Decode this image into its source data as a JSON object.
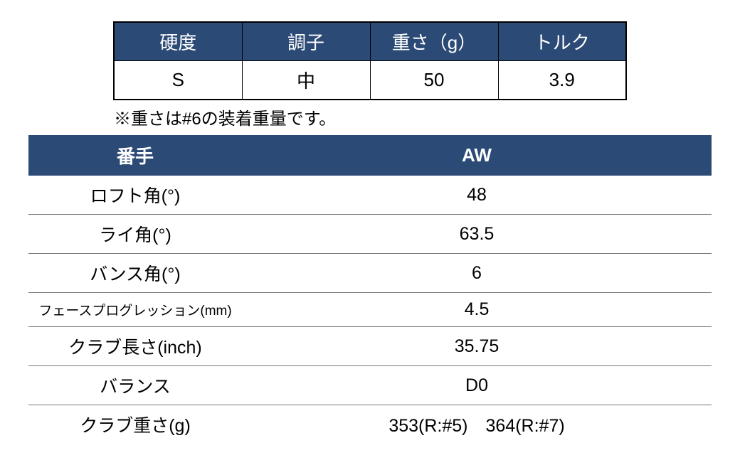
{
  "table1": {
    "header_bg": "#2c4a76",
    "header_color": "#ffffff",
    "border_color": "#000000",
    "columns": [
      "硬度",
      "調子",
      "重さ（g）",
      "トルク"
    ],
    "row": [
      "S",
      "中",
      "50",
      "3.9"
    ]
  },
  "note": "※重さは#6の装着重量です。",
  "table2": {
    "header_bg": "#2c4a76",
    "header_color": "#ffffff",
    "columns": [
      "番手",
      "AW"
    ],
    "rows": [
      {
        "label": "ロフト角(°)",
        "value": "48",
        "small": false
      },
      {
        "label": "ライ角(°)",
        "value": "63.5",
        "small": false
      },
      {
        "label": "バンス角(°)",
        "value": "6",
        "small": false
      },
      {
        "label": "フェースプログレッション(mm)",
        "value": "4.5",
        "small": true
      },
      {
        "label": "クラブ長さ(inch)",
        "value": "35.75",
        "small": false
      },
      {
        "label": "バランス",
        "value": "D0",
        "small": false
      },
      {
        "label": "クラブ重さ(g)",
        "value": "353(R:#5)　364(R:#7)",
        "small": false
      }
    ]
  }
}
